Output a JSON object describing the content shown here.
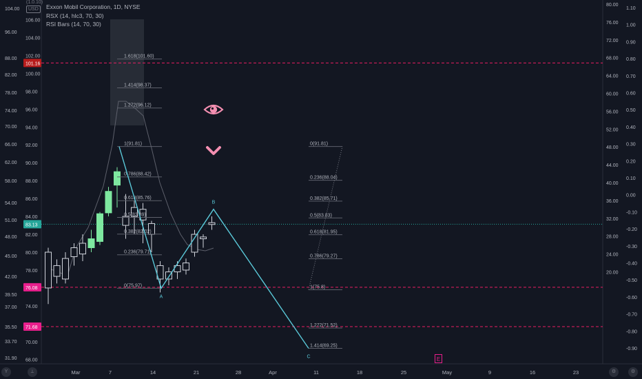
{
  "legend": {
    "title": "Exxon Mobil Corporation, 1D, NYSE",
    "line2": "RSX (14, hlc3, 70, 30)",
    "line3": "RSI Bars (14, 70, 30)"
  },
  "corner": {
    "top": "(1.0.10)",
    "currency": "USD"
  },
  "price_labels": {
    "current": "83.13",
    "upper": "101.16",
    "lower1": "76.08",
    "lower2": "71.68"
  },
  "colors": {
    "bull": "#7ee8a0",
    "outline": "#d1d4dc",
    "wave": "#5ac8d8",
    "dashed": "#e91e63",
    "current": "#26a69a",
    "ghost": "#363a45"
  },
  "chart_data": {
    "type": "candlestick",
    "price_axis_right": [
      "106.00",
      "104.00",
      "102.00",
      "100.00",
      "98.00",
      "96.00",
      "94.00",
      "92.00",
      "90.00",
      "88.00",
      "86.00",
      "84.00",
      "82.00",
      "80.00",
      "78.00",
      "76.00",
      "74.00",
      "72.00",
      "70.00",
      "68.00"
    ],
    "price_axis_left": [
      "104.00",
      "96.00",
      "88.00",
      "82.00",
      "78.00",
      "74.00",
      "70.00",
      "66.00",
      "62.00",
      "58.00",
      "54.00",
      "51.00",
      "48.00",
      "45.00",
      "42.00",
      "39.50",
      "37.00",
      "35.50",
      "33.70",
      "31.90"
    ],
    "rsx_axis": [
      "80.00",
      "76.00",
      "72.00",
      "68.00",
      "64.00",
      "60.00",
      "56.00",
      "52.00",
      "48.00",
      "44.00",
      "40.00",
      "36.00",
      "32.00",
      "28.00",
      "24.00",
      "20.00"
    ],
    "osc_axis": [
      "1.10",
      "1.00",
      "0.90",
      "0.80",
      "0.70",
      "0.60",
      "0.50",
      "0.40",
      "0.30",
      "0.20",
      "0.10",
      "0.00",
      "-0.10",
      "-0.20",
      "-0.30",
      "-0.40",
      "-0.50",
      "-0.60",
      "-0.70",
      "-0.80",
      "-0.90"
    ],
    "time_axis": [
      "Mar",
      "7",
      "14",
      "21",
      "28",
      "Apr",
      "11",
      "18",
      "25",
      "May",
      "9",
      "16",
      "23"
    ],
    "candles": [
      {
        "o": 76.0,
        "h": 80.5,
        "l": 74.2,
        "c": 80.0,
        "bull": false
      },
      {
        "o": 77.3,
        "h": 79.2,
        "l": 76.5,
        "c": 78.5,
        "bull": false
      },
      {
        "o": 77.0,
        "h": 80.0,
        "l": 76.5,
        "c": 79.3,
        "bull": false
      },
      {
        "o": 79.5,
        "h": 81.0,
        "l": 78.5,
        "c": 80.5,
        "bull": false
      },
      {
        "o": 79.8,
        "h": 82.0,
        "l": 79.0,
        "c": 81.0,
        "bull": false
      },
      {
        "o": 80.5,
        "h": 82.5,
        "l": 80.0,
        "c": 81.5,
        "bull": true
      },
      {
        "o": 81.2,
        "h": 84.5,
        "l": 80.8,
        "c": 84.3,
        "bull": true
      },
      {
        "o": 84.4,
        "h": 87.3,
        "l": 84.0,
        "c": 86.8,
        "bull": true
      },
      {
        "o": 87.5,
        "h": 89.5,
        "l": 85.0,
        "c": 89.0,
        "bull": true
      },
      {
        "o": 83.0,
        "h": 86.5,
        "l": 81.5,
        "c": 84.0,
        "bull": false
      },
      {
        "o": 84.0,
        "h": 85.8,
        "l": 82.0,
        "c": 85.0,
        "bull": false
      },
      {
        "o": 83.6,
        "h": 85.5,
        "l": 81.0,
        "c": 84.8,
        "bull": false
      },
      {
        "o": 82.0,
        "h": 83.5,
        "l": 80.0,
        "c": 83.2,
        "bull": false
      },
      {
        "o": 77.0,
        "h": 79.0,
        "l": 75.5,
        "c": 78.5,
        "bull": false
      },
      {
        "o": 77.0,
        "h": 78.3,
        "l": 76.3,
        "c": 77.8,
        "bull": false
      },
      {
        "o": 77.8,
        "h": 79.0,
        "l": 77.0,
        "c": 78.5,
        "bull": false
      },
      {
        "o": 78.0,
        "h": 79.3,
        "l": 77.5,
        "c": 78.8,
        "bull": false
      },
      {
        "o": 80.0,
        "h": 82.5,
        "l": 79.5,
        "c": 82.0,
        "bull": false
      },
      {
        "o": 81.5,
        "h": 82.0,
        "l": 80.5,
        "c": 81.7,
        "bull": false
      },
      {
        "o": 83.1,
        "h": 84.0,
        "l": 82.5,
        "c": 83.3,
        "bull": false
      }
    ],
    "fib_retracement": [
      {
        "label": "1.618(101.60)",
        "price": 101.6
      },
      {
        "label": "1.414(98.37)",
        "price": 98.37
      },
      {
        "label": "1.272(96.12)",
        "price": 96.12
      },
      {
        "label": "1(91.81)",
        "price": 91.81
      },
      {
        "label": "0.786(88.42)",
        "price": 88.42
      },
      {
        "label": "0.618(85.76)",
        "price": 85.76
      },
      {
        "label": "0.5(83.89)",
        "price": 83.89
      },
      {
        "label": "0.382(82.02)",
        "price": 82.02
      },
      {
        "label": "0.236(79.71)",
        "price": 79.71
      },
      {
        "label": "0(75.97)",
        "price": 75.97
      }
    ],
    "fib_extension": [
      {
        "label": "0(91.81)",
        "price": 91.81
      },
      {
        "label": "0.236(88.04)",
        "price": 88.04
      },
      {
        "label": "0.382(85.71)",
        "price": 85.71
      },
      {
        "label": "0.5(83.83)",
        "price": 83.83
      },
      {
        "label": "0.618(81.95)",
        "price": 81.95
      },
      {
        "label": "0.786(79.27)",
        "price": 79.27
      },
      {
        "label": "1(75.8)",
        "price": 75.8
      },
      {
        "label": "1.272(71.52)",
        "price": 71.52
      },
      {
        "label": "1.414(69.25)",
        "price": 69.25
      }
    ],
    "wave_points": [
      {
        "label": "",
        "price": 91.81
      },
      {
        "label": "A",
        "price": 75.97
      },
      {
        "label": "B",
        "price": 84.8
      },
      {
        "label": "C",
        "price": 69.25
      }
    ],
    "hlines": [
      {
        "price": 101.16,
        "style": "dashed"
      },
      {
        "price": 83.13,
        "style": "dotted"
      },
      {
        "price": 76.08,
        "style": "dashed"
      },
      {
        "price": 71.68,
        "style": "dashed"
      }
    ],
    "markers": {
      "event": "E"
    }
  }
}
